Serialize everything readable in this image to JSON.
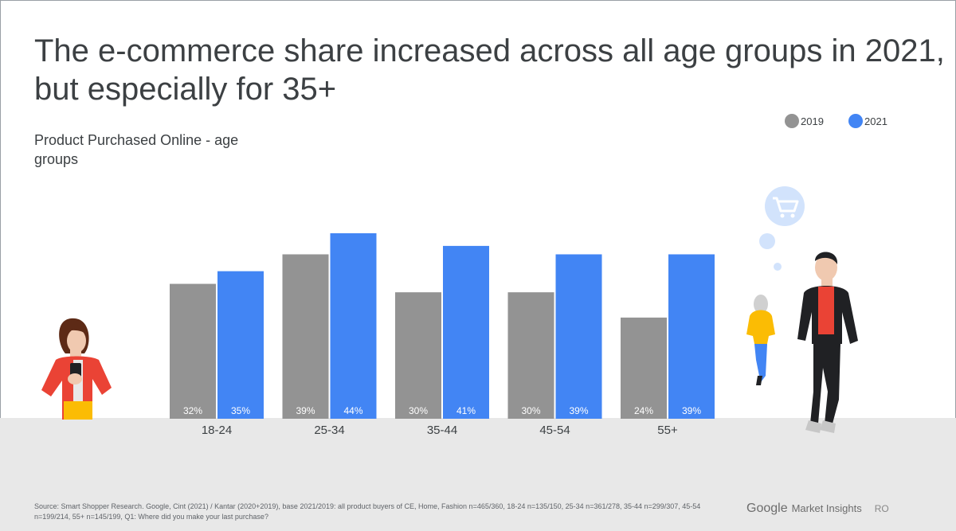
{
  "title": "The e-commerce share increased across all age groups in 2021, but especially for 35+",
  "subtitle": "Product Purchased Online - age groups",
  "legend": [
    {
      "label": "2019",
      "color": "#939393"
    },
    {
      "label": "2021",
      "color": "#4285f4"
    }
  ],
  "chart_data": {
    "type": "bar",
    "title": "",
    "xlabel": "",
    "ylabel": "",
    "categories": [
      "18-24",
      "25-34",
      "35-44",
      "45-54",
      "55+"
    ],
    "series": [
      {
        "name": "2019",
        "values": [
          32,
          39,
          30,
          30,
          24
        ],
        "labels": [
          "32%",
          "39%",
          "30%",
          "30%",
          "24%"
        ],
        "color": "#939393"
      },
      {
        "name": "2021",
        "values": [
          35,
          44,
          41,
          39,
          39
        ],
        "labels": [
          "35%",
          "44%",
          "41%",
          "39%",
          "39%"
        ],
        "color": "#4285f4"
      }
    ],
    "ylim": [
      0,
      44
    ],
    "grid": false,
    "legend_position": "top-right"
  },
  "source": "Source: Smart Shopper Research. Google, Cint (2021) / Kantar (2020+2019), base 2021/2019: all product buyers of CE, Home, Fashion n=465/360, 18-24 n=135/150, 25-34 n=361/278, 35-44 n=299/307, 45-54 n=199/214, 55+ n=145/199, Q1: Where did you make your last purchase?",
  "brand": {
    "google": "Google",
    "product": "Market Insights",
    "market": "RO"
  },
  "illustrations": {
    "cart_icon": "shopping-cart-icon"
  }
}
